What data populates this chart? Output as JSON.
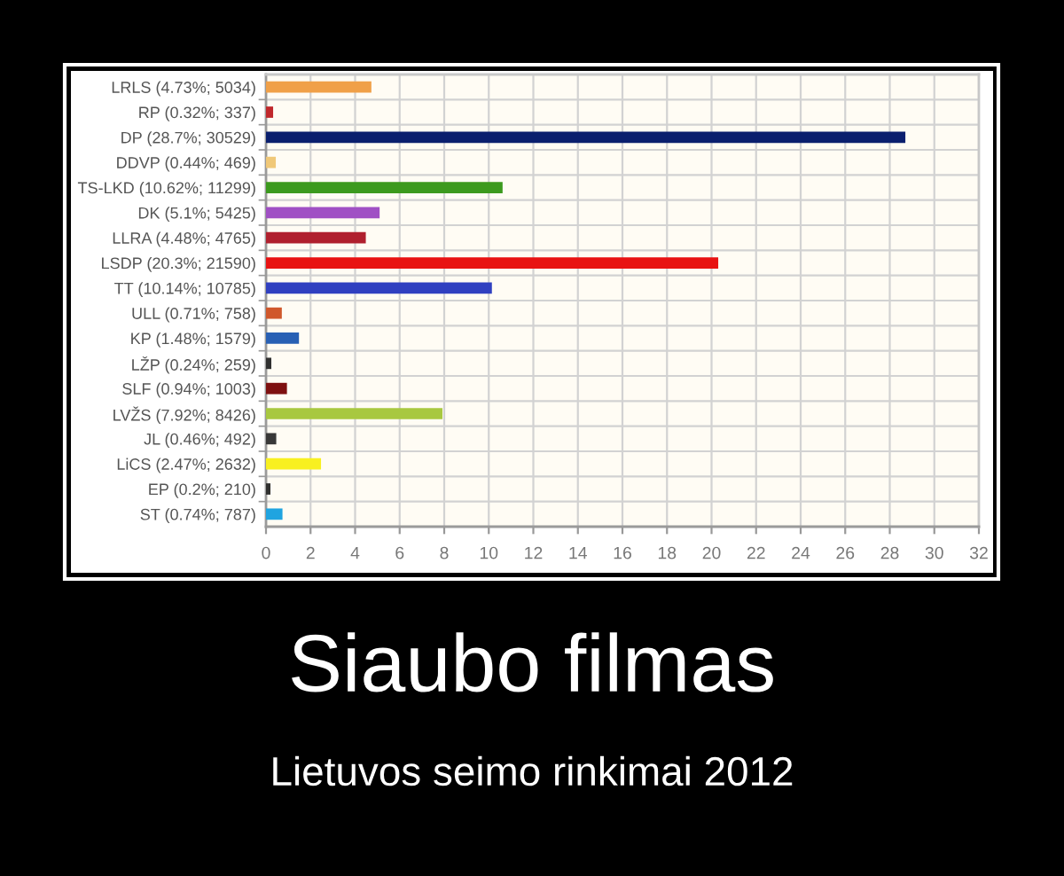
{
  "chart_data": {
    "type": "bar",
    "orientation": "horizontal",
    "title": "Siaubo filmas",
    "subtitle": "Lietuvos seimo rinkimai 2012",
    "categories": [
      "LRLS (4.73%; 5034)",
      "RP (0.32%; 337)",
      "DP (28.7%; 30529)",
      "DDVP (0.44%; 469)",
      "TS-LKD (10.62%; 11299)",
      "DK (5.1%; 5425)",
      "LLRA (4.48%; 4765)",
      "LSDP (20.3%; 21590)",
      "TT (10.14%; 10785)",
      "ULL (0.71%; 758)",
      "KP (1.48%; 1579)",
      "LŽP (0.24%; 259)",
      "SLF (0.94%; 1003)",
      "LVŽS (7.92%; 8426)",
      "JL (0.46%; 492)",
      "LiCS (2.47%; 2632)",
      "EP (0.2%; 210)",
      "ST (0.74%; 787)"
    ],
    "values": [
      4.73,
      0.32,
      28.7,
      0.44,
      10.62,
      5.1,
      4.48,
      20.3,
      10.14,
      0.71,
      1.48,
      0.24,
      0.94,
      7.92,
      0.46,
      2.47,
      0.2,
      0.74
    ],
    "colors": [
      "#f0a048",
      "#c0282c",
      "#0a1f6e",
      "#f0c878",
      "#3c9a1e",
      "#a050c4",
      "#b0202e",
      "#e81212",
      "#3040c0",
      "#d0582c",
      "#2860b4",
      "#303030",
      "#7e1010",
      "#a8c840",
      "#383838",
      "#f8f020",
      "#303030",
      "#20a4e0"
    ],
    "xlim": [
      0,
      32
    ],
    "xticks": [
      0,
      2,
      4,
      6,
      8,
      10,
      12,
      14,
      16,
      18,
      20,
      22,
      24,
      26,
      28,
      30,
      32
    ],
    "grid": true
  }
}
